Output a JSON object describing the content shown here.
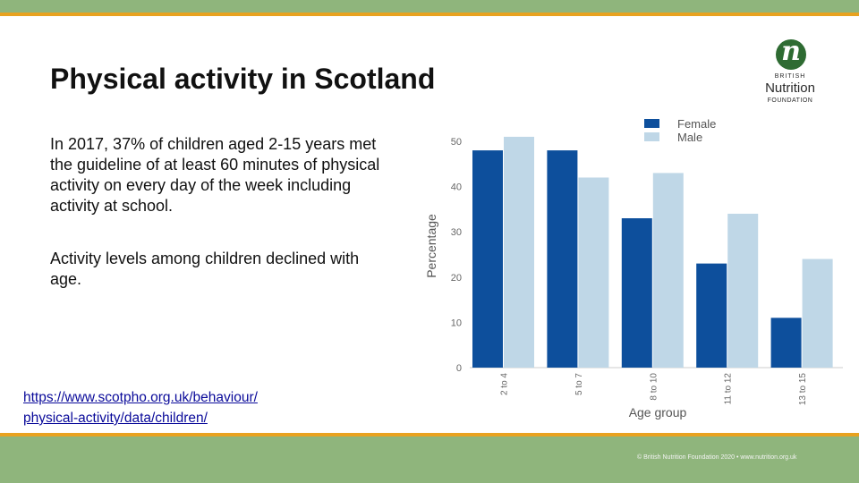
{
  "slide": {
    "title": "Physical activity in Scotland",
    "paragraph1": "In 2017, 37% of children aged 2-15 years met the guideline of at least 60 minutes of physical activity on every day of the week including activity at school.",
    "paragraph2": "Activity levels among children declined with age.",
    "link_line1": "https://www.scotpho.org.uk/behaviour/",
    "link_line2": "physical-activity/data/children/",
    "footer": "© British Nutrition Foundation 2020 • www.nutrition.org.uk"
  },
  "logo": {
    "letter": "n",
    "line1": "BRITISH",
    "line2": "Nutrition",
    "line3": "FOUNDATION"
  },
  "colors": {
    "female": "#0d4f9c",
    "male": "#bfd7e7",
    "green_band": "#8fb57c",
    "orange_stripe": "#e8a21f"
  },
  "chart_data": {
    "type": "bar",
    "categories": [
      "2 to 4",
      "5 to 7",
      "8 to 10",
      "11 to 12",
      "13 to 15"
    ],
    "series": [
      {
        "name": "Female",
        "values": [
          48,
          48,
          33,
          23,
          11
        ]
      },
      {
        "name": "Male",
        "values": [
          51,
          42,
          43,
          34,
          24
        ]
      }
    ],
    "yticks": [
      "0",
      "10",
      "20",
      "30",
      "40",
      "50"
    ],
    "xlabel": "Age group",
    "ylabel": "Percentage",
    "ylim": [
      0,
      50
    ],
    "legend_position": "top-right",
    "grid": false
  }
}
